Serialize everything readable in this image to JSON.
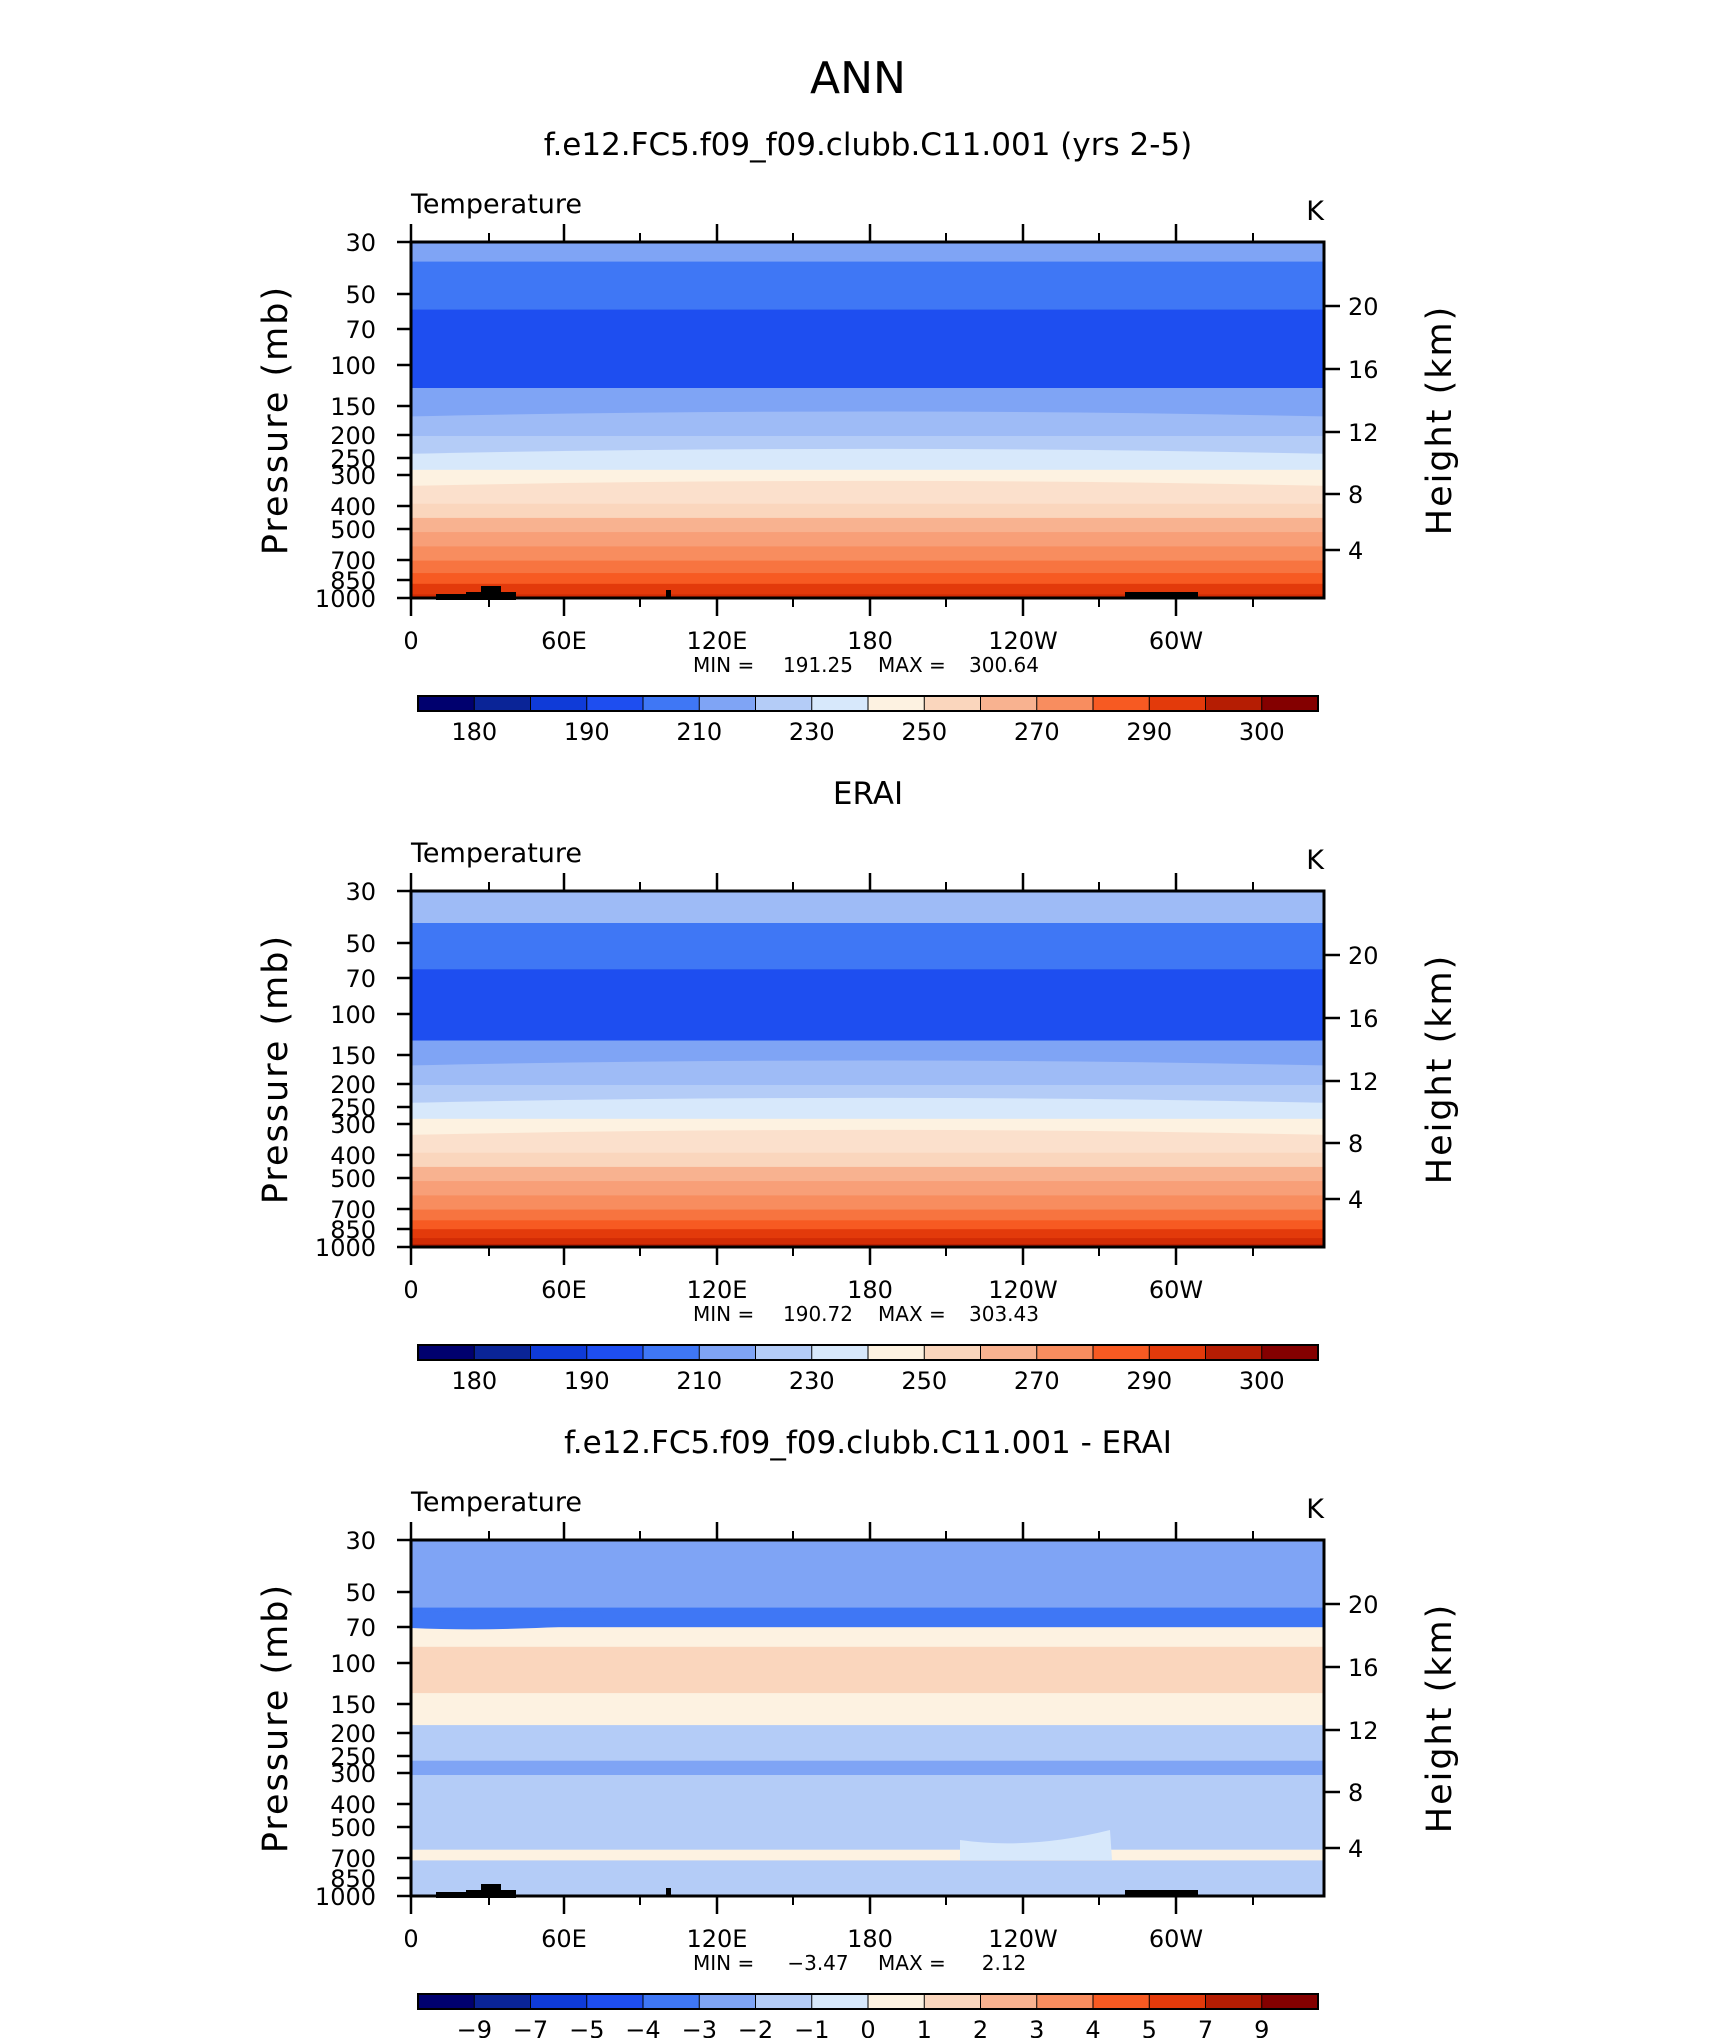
{
  "chart_data": {
    "type": "heatmap",
    "supertitle": "ANN",
    "panels": [
      {
        "title": "f.e12.FC5.f09_f09.clubb.C11.001 (yrs 2-5)",
        "variable": "Temperature",
        "units": "K",
        "ylabel": "Pressure (mb)",
        "y2label": "Height (km)",
        "x_ticks": [
          "0",
          "60E",
          "120E",
          "180",
          "120W",
          "60W"
        ],
        "y_ticks": [
          "30",
          "50",
          "70",
          "100",
          "150",
          "200",
          "250",
          "300",
          "400",
          "500",
          "700",
          "850",
          "1000"
        ],
        "y2_ticks": [
          "20",
          "16",
          "12",
          "8",
          "4"
        ],
        "min_label": "MIN =",
        "min_value": "191.25",
        "max_label": "MAX =",
        "max_value": "300.64",
        "field_levels_top_to_bottom": [
          215,
          205,
          195,
          215,
          220,
          230,
          240,
          250,
          255,
          260,
          265,
          270,
          275,
          280,
          285,
          290,
          295
        ],
        "colorbar": {
          "colors": [
            "#00006e",
            "#0a2497",
            "#0f3bd8",
            "#1e4ef0",
            "#3f77f5",
            "#7fa4f5",
            "#b4ccf7",
            "#d7e8fb",
            "#fdf2e1",
            "#fad6bd",
            "#f8b290",
            "#f88d5f",
            "#f75a22",
            "#e33a0b",
            "#b51d03",
            "#840000"
          ],
          "labels": [
            "180",
            "190",
            "210",
            "230",
            "250",
            "270",
            "290",
            "300"
          ]
        }
      },
      {
        "title": "ERAI",
        "variable": "Temperature",
        "units": "K",
        "ylabel": "Pressure (mb)",
        "y2label": "Height (km)",
        "x_ticks": [
          "0",
          "60E",
          "120E",
          "180",
          "120W",
          "60W"
        ],
        "y_ticks": [
          "30",
          "50",
          "70",
          "100",
          "150",
          "200",
          "250",
          "300",
          "400",
          "500",
          "700",
          "850",
          "1000"
        ],
        "y2_ticks": [
          "20",
          "16",
          "12",
          "8",
          "4"
        ],
        "min_label": "MIN =",
        "min_value": "190.72",
        "max_label": "MAX =",
        "max_value": "303.43",
        "field_levels_top_to_bottom": [
          220,
          210,
          195,
          215,
          220,
          230,
          240,
          250,
          255,
          260,
          265,
          270,
          275,
          280,
          285,
          290,
          295,
          300
        ],
        "colorbar": {
          "colors": [
            "#00006e",
            "#0a2497",
            "#0f3bd8",
            "#1e4ef0",
            "#3f77f5",
            "#7fa4f5",
            "#b4ccf7",
            "#d7e8fb",
            "#fdf2e1",
            "#fad6bd",
            "#f8b290",
            "#f88d5f",
            "#f75a22",
            "#e33a0b",
            "#b51d03",
            "#840000"
          ],
          "labels": [
            "180",
            "190",
            "210",
            "230",
            "250",
            "270",
            "290",
            "300"
          ]
        }
      },
      {
        "title": "f.e12.FC5.f09_f09.clubb.C11.001 - ERAI",
        "variable": "Temperature",
        "units": "K",
        "ylabel": "Pressure (mb)",
        "y2label": "Height (km)",
        "x_ticks": [
          "0",
          "60E",
          "120E",
          "180",
          "120W",
          "60W"
        ],
        "y_ticks": [
          "30",
          "50",
          "70",
          "100",
          "150",
          "200",
          "250",
          "300",
          "400",
          "500",
          "700",
          "850",
          "1000"
        ],
        "y2_ticks": [
          "20",
          "16",
          "12",
          "8",
          "4"
        ],
        "min_label": "MIN =",
        "min_value": "−3.47",
        "max_label": "MAX =",
        "max_value": "2.12",
        "field_levels_top_to_bottom": [
          -2,
          -3,
          0.5,
          1,
          0.5,
          -0.5,
          -1.5,
          -0.5,
          0.5,
          -0.5
        ],
        "colorbar": {
          "colors": [
            "#00006e",
            "#0a2497",
            "#0f3bd8",
            "#1e4ef0",
            "#3f77f5",
            "#7fa4f5",
            "#b4ccf7",
            "#d7e8fb",
            "#fdf2e1",
            "#fad6bd",
            "#f8b290",
            "#f88d5f",
            "#f75a22",
            "#e33a0b",
            "#b51d03",
            "#840000"
          ],
          "labels": [
            "−9",
            "−7",
            "−5",
            "−4",
            "−3",
            "−2",
            "−1",
            "0",
            "1",
            "2",
            "3",
            "4",
            "5",
            "7",
            "9"
          ]
        }
      }
    ]
  }
}
